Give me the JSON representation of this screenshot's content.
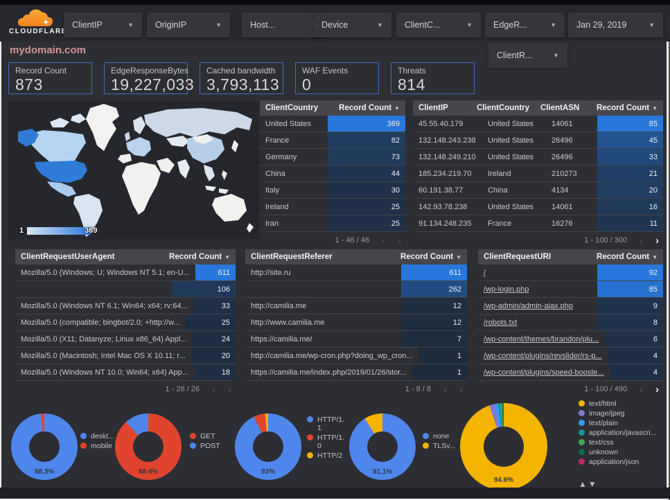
{
  "brand": {
    "name": "CLOUDFLARE"
  },
  "filters": {
    "row1": [
      "ClientIP",
      "OriginIP",
      "Host...",
      "Device",
      "ClientC...",
      "EdgeR..."
    ],
    "date": "Jan 29, 2019",
    "row2": [
      "ClientR..."
    ]
  },
  "page_title": "mydomain.com",
  "scorecards": [
    {
      "label": "Record Count",
      "value": "873"
    },
    {
      "label": "EdgeResponseBytes",
      "value": "19,227,033"
    },
    {
      "label": "Cached bandwidth",
      "value": "3,793,113"
    },
    {
      "label": "WAF Events",
      "value": "0"
    },
    {
      "label": "Threats",
      "value": "814"
    }
  ],
  "map": {
    "legend_min": "1",
    "legend_max": "369"
  },
  "colors": {
    "bar_max": "#2878dc",
    "bar_min": "#1e2b3d",
    "card_border": "#3f6fbe",
    "title": "#d29697",
    "blue": "#4e86ec",
    "red": "#e0442e",
    "yellow": "#f5b400"
  },
  "tables": {
    "country": {
      "columns": [
        "ClientCountry",
        "Record Count"
      ],
      "rows": [
        [
          "United States",
          369
        ],
        [
          "France",
          82
        ],
        [
          "Germany",
          73
        ],
        [
          "China",
          44
        ],
        [
          "Italy",
          30
        ],
        [
          "Ireland",
          25
        ],
        [
          "Iran",
          25
        ]
      ],
      "max": 369,
      "links": false,
      "pagination": {
        "text": "1 - 46 / 46",
        "prev": false,
        "next": false
      }
    },
    "ip": {
      "columns": [
        "ClientIP",
        "ClientCountry",
        "ClientASN",
        "Record Count"
      ],
      "rows": [
        [
          "45.55.40.179",
          "United States",
          "14061",
          85
        ],
        [
          "132.148.243.238",
          "United States",
          "26496",
          45
        ],
        [
          "132.148.249.210",
          "United States",
          "26496",
          33
        ],
        [
          "185.234.219.70",
          "Ireland",
          "210273",
          21
        ],
        [
          "60.191.38.77",
          "China",
          "4134",
          20
        ],
        [
          "142.93.78.238",
          "United States",
          "14061",
          16
        ],
        [
          "91.134.248.235",
          "France",
          "16276",
          11
        ]
      ],
      "max": 85,
      "links": false,
      "pagination": {
        "text": "1 - 100 / 300",
        "prev": false,
        "next": true
      }
    },
    "ua": {
      "columns": [
        "ClientRequestUserAgent",
        "Record Count"
      ],
      "rows": [
        [
          "Mozilla/5.0 (Windows; U; Windows NT 5.1; en-U...",
          611
        ],
        [
          "",
          106
        ],
        [
          "Mozilla/5.0 (Windows NT 6.1; Win64; x64; rv:64...",
          33
        ],
        [
          "Mozilla/5.0 (compatible; bingbot/2.0; +http://w...",
          25
        ],
        [
          "Mozilla/5.0 (X11; Datanyze; Linux x86_64) Appl...",
          24
        ],
        [
          "Mozilla/5.0 (Macintosh; Intel Mac OS X 10.11; r...",
          20
        ],
        [
          "Mozilla/5.0 (Windows NT 10.0; Win64; x64) App...",
          18
        ]
      ],
      "max": 611,
      "links": false,
      "pagination": {
        "text": "1 - 26 / 26",
        "prev": false,
        "next": false
      }
    },
    "referer": {
      "columns": [
        "ClientRequestReferer",
        "Record Count"
      ],
      "rows": [
        [
          "http://site.ru",
          611
        ],
        [
          "",
          262
        ],
        [
          "http://camilia.me",
          12
        ],
        [
          "http://www.camilia.me",
          12
        ],
        [
          "https://camilia.me/",
          7
        ],
        [
          "http://camilia.me/wp-cron.php?doing_wp_cron...",
          1
        ],
        [
          "https://camilia.me/index.php/2019/01/26/stor...",
          1
        ]
      ],
      "max": 611,
      "links": false,
      "pagination": {
        "text": "1 - 8 / 8",
        "prev": false,
        "next": false
      }
    },
    "uri": {
      "columns": [
        "ClientRequestURI",
        "Record Count"
      ],
      "rows": [
        [
          "/",
          92
        ],
        [
          "/wp-login.php",
          85
        ],
        [
          "/wp-admin/admin-ajax.php",
          9
        ],
        [
          "/robots.txt",
          8
        ],
        [
          "/wp-content/themes/brandon/plu...",
          6
        ],
        [
          "/wp-content/plugins/revslider/rs-p...",
          4
        ],
        [
          "/wp-content/plugins/speed-booste...",
          4
        ]
      ],
      "max": 92,
      "links": true,
      "pagination": {
        "text": "1 - 100 / 490",
        "prev": false,
        "next": true
      }
    }
  },
  "donuts": [
    {
      "percent_label": "98.3%",
      "slices": [
        {
          "label": "deskt...",
          "value": 98.3,
          "color": "#4e86ec"
        },
        {
          "label": "mobile",
          "value": 1.7,
          "color": "#e0442e"
        }
      ]
    },
    {
      "percent_label": "88.4%",
      "slices": [
        {
          "label": "GET",
          "value": 88.4,
          "color": "#e0442e"
        },
        {
          "label": "POST",
          "value": 11.6,
          "color": "#4e86ec"
        }
      ]
    },
    {
      "percent_label": "93%",
      "slices": [
        {
          "label": "HTTP/1.1",
          "value": 93,
          "color": "#4e86ec"
        },
        {
          "label": "HTTP/1.0",
          "value": 5.5,
          "color": "#e0442e"
        },
        {
          "label": "HTTP/2",
          "value": 1.5,
          "color": "#f5b400"
        }
      ]
    },
    {
      "percent_label": "91.1%",
      "slices": [
        {
          "label": "none",
          "value": 91.1,
          "color": "#4e86ec"
        },
        {
          "label": "TLSv...",
          "value": 8.9,
          "color": "#f5b400"
        }
      ]
    },
    {
      "percent_label": "94.6%",
      "slices": [
        {
          "label": "text/html",
          "value": 94.6,
          "color": "#f5b400"
        },
        {
          "label": "image/jpeg",
          "value": 2.2,
          "color": "#7f7ad4"
        },
        {
          "label": "text/plain",
          "value": 1.1,
          "color": "#2f9df4"
        },
        {
          "label": "application/javascri...",
          "value": 0.9,
          "color": "#18949c"
        },
        {
          "label": "text/css",
          "value": 0.6,
          "color": "#3fab55"
        },
        {
          "label": "unknown",
          "value": 0.4,
          "color": "#0c6b52"
        },
        {
          "label": "application/json",
          "value": 0.2,
          "color": "#c52564"
        }
      ]
    }
  ],
  "legend_scroll": {
    "up": "▲",
    "down": "▼"
  }
}
